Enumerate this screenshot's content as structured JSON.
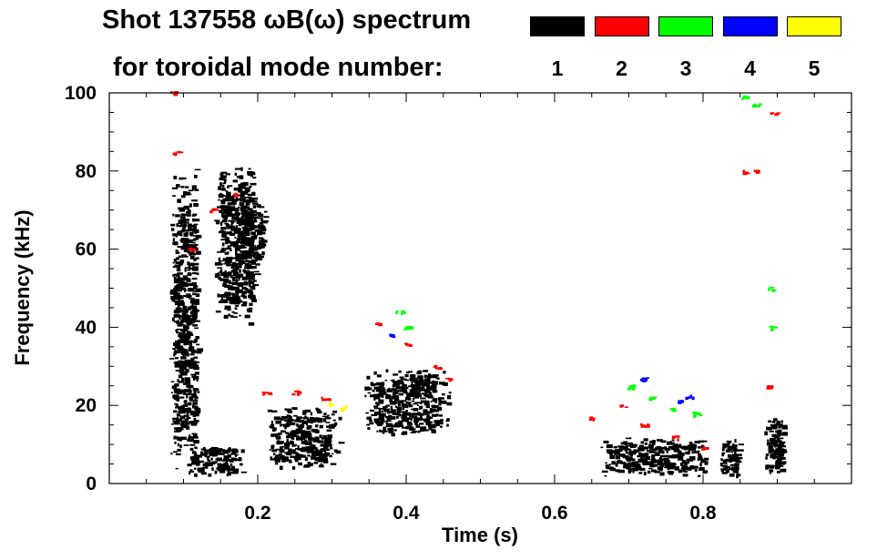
{
  "title_line1": "Shot 137558 ωB(ω) spectrum",
  "title_line2": "for toroidal mode number:",
  "legend": [
    {
      "label": "1",
      "color": "#000000"
    },
    {
      "label": "2",
      "color": "#ff0000"
    },
    {
      "label": "3",
      "color": "#00ff00"
    },
    {
      "label": "4",
      "color": "#0000ff"
    },
    {
      "label": "5",
      "color": "#ffff00"
    }
  ],
  "chart_data": {
    "type": "scatter",
    "xlabel": "Time (s)",
    "ylabel": "Frequency (kHz)",
    "xlim": [
      0.0,
      1.0
    ],
    "ylim": [
      0,
      100
    ],
    "xticks": [
      0.2,
      0.4,
      0.6,
      0.8
    ],
    "yticks": [
      0,
      20,
      40,
      60,
      80,
      100
    ],
    "grid": false,
    "series": [
      {
        "name": "1",
        "color": "#000000",
        "regions": [
          {
            "x": [
              0.08,
              0.12
            ],
            "y": [
              2,
              82
            ]
          },
          {
            "x": [
              0.1,
              0.18
            ],
            "y": [
              2,
              10
            ]
          },
          {
            "x": [
              0.14,
              0.2
            ],
            "y": [
              40,
              82
            ]
          },
          {
            "x": [
              0.17,
              0.21
            ],
            "y": [
              55,
              72
            ]
          },
          {
            "x": [
              0.21,
              0.31
            ],
            "y": [
              4,
              20
            ]
          },
          {
            "x": [
              0.34,
              0.46
            ],
            "y": [
              12,
              30
            ]
          },
          {
            "x": [
              0.66,
              0.81
            ],
            "y": [
              2,
              12
            ]
          },
          {
            "x": [
              0.82,
              0.85
            ],
            "y": [
              2,
              12
            ]
          },
          {
            "x": [
              0.88,
              0.91
            ],
            "y": [
              2,
              18
            ]
          }
        ]
      },
      {
        "name": "2",
        "color": "#ff0000",
        "points": [
          [
            0.085,
            100
          ],
          [
            0.09,
            85
          ],
          [
            0.11,
            60
          ],
          [
            0.14,
            70
          ],
          [
            0.17,
            74
          ],
          [
            0.21,
            23.5
          ],
          [
            0.25,
            23.5
          ],
          [
            0.29,
            22
          ],
          [
            0.36,
            41
          ],
          [
            0.4,
            36
          ],
          [
            0.44,
            30
          ],
          [
            0.455,
            27
          ],
          [
            0.65,
            17
          ],
          [
            0.69,
            20
          ],
          [
            0.72,
            15
          ],
          [
            0.76,
            12
          ],
          [
            0.8,
            9.5
          ],
          [
            0.855,
            80
          ],
          [
            0.87,
            80
          ],
          [
            0.895,
            95
          ],
          [
            0.89,
            25
          ]
        ]
      },
      {
        "name": "3",
        "color": "#00ff00",
        "points": [
          [
            0.39,
            44
          ],
          [
            0.4,
            40
          ],
          [
            0.7,
            25
          ],
          [
            0.73,
            22
          ],
          [
            0.76,
            19
          ],
          [
            0.79,
            18
          ],
          [
            0.855,
            99
          ],
          [
            0.87,
            97
          ],
          [
            0.89,
            50
          ],
          [
            0.89,
            40
          ]
        ]
      },
      {
        "name": "4",
        "color": "#0000ff",
        "points": [
          [
            0.38,
            38
          ],
          [
            0.72,
            27
          ],
          [
            0.77,
            21
          ],
          [
            0.78,
            22.5
          ]
        ]
      },
      {
        "name": "5",
        "color": "#ffff00",
        "points": [
          [
            0.3,
            20.5
          ],
          [
            0.315,
            19.5
          ]
        ]
      }
    ]
  }
}
